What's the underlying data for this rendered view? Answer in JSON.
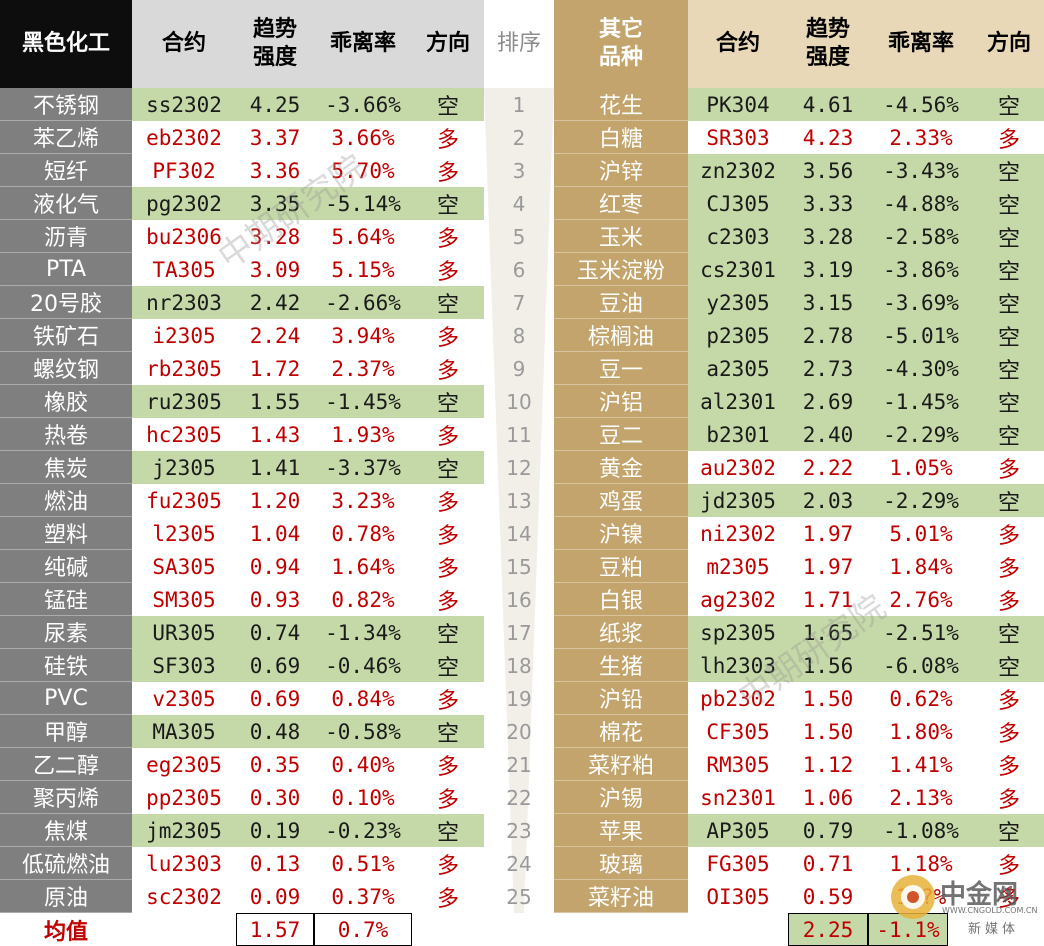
{
  "header": {
    "left_category": "黑色化工",
    "contract": "合约",
    "trend_1": "趋势",
    "trend_2": "强度",
    "deviation": "乖离率",
    "direction": "方向",
    "rank": "排序",
    "right_category_1": "其它",
    "right_category_2": "品种"
  },
  "colors": {
    "long_text": "#c00000",
    "short_text": "#1a1a1a",
    "short_bg": "#c5d9a8",
    "left_name_bg": "#7f7f7f",
    "right_name_bg": "#c3a46c"
  },
  "left_rows": [
    {
      "name": "不锈钢",
      "contract": "ss2302",
      "trend": "4.25",
      "deviation": "-3.66%",
      "direction": "空"
    },
    {
      "name": "苯乙烯",
      "contract": "eb2302",
      "trend": "3.37",
      "deviation": "3.66%",
      "direction": "多"
    },
    {
      "name": "短纤",
      "contract": "PF302",
      "trend": "3.36",
      "deviation": "5.70%",
      "direction": "多"
    },
    {
      "name": "液化气",
      "contract": "pg2302",
      "trend": "3.35",
      "deviation": "-5.14%",
      "direction": "空"
    },
    {
      "name": "沥青",
      "contract": "bu2306",
      "trend": "3.28",
      "deviation": "5.64%",
      "direction": "多"
    },
    {
      "name": "PTA",
      "contract": "TA305",
      "trend": "3.09",
      "deviation": "5.15%",
      "direction": "多"
    },
    {
      "name": "20号胶",
      "contract": "nr2303",
      "trend": "2.42",
      "deviation": "-2.66%",
      "direction": "空"
    },
    {
      "name": "铁矿石",
      "contract": "i2305",
      "trend": "2.24",
      "deviation": "3.94%",
      "direction": "多"
    },
    {
      "name": "螺纹钢",
      "contract": "rb2305",
      "trend": "1.72",
      "deviation": "2.37%",
      "direction": "多"
    },
    {
      "name": "橡胶",
      "contract": "ru2305",
      "trend": "1.55",
      "deviation": "-1.45%",
      "direction": "空"
    },
    {
      "name": "热卷",
      "contract": "hc2305",
      "trend": "1.43",
      "deviation": "1.93%",
      "direction": "多"
    },
    {
      "name": "焦炭",
      "contract": "j2305",
      "trend": "1.41",
      "deviation": "-3.37%",
      "direction": "空"
    },
    {
      "name": "燃油",
      "contract": "fu2305",
      "trend": "1.20",
      "deviation": "3.23%",
      "direction": "多"
    },
    {
      "name": "塑料",
      "contract": "l2305",
      "trend": "1.04",
      "deviation": "0.78%",
      "direction": "多"
    },
    {
      "name": "纯碱",
      "contract": "SA305",
      "trend": "0.94",
      "deviation": "1.64%",
      "direction": "多"
    },
    {
      "name": "锰硅",
      "contract": "SM305",
      "trend": "0.93",
      "deviation": "0.82%",
      "direction": "多"
    },
    {
      "name": "尿素",
      "contract": "UR305",
      "trend": "0.74",
      "deviation": "-1.34%",
      "direction": "空"
    },
    {
      "name": "硅铁",
      "contract": "SF303",
      "trend": "0.69",
      "deviation": "-0.46%",
      "direction": "空"
    },
    {
      "name": "PVC",
      "contract": "v2305",
      "trend": "0.69",
      "deviation": "0.84%",
      "direction": "多"
    },
    {
      "name": "甲醇",
      "contract": "MA305",
      "trend": "0.48",
      "deviation": "-0.58%",
      "direction": "空"
    },
    {
      "name": "乙二醇",
      "contract": "eg2305",
      "trend": "0.35",
      "deviation": "0.40%",
      "direction": "多"
    },
    {
      "name": "聚丙烯",
      "contract": "pp2305",
      "trend": "0.30",
      "deviation": "0.10%",
      "direction": "多"
    },
    {
      "name": "焦煤",
      "contract": "jm2305",
      "trend": "0.19",
      "deviation": "-0.23%",
      "direction": "空"
    },
    {
      "name": "低硫燃油",
      "contract": "lu2303",
      "trend": "0.13",
      "deviation": "0.51%",
      "direction": "多"
    },
    {
      "name": "原油",
      "contract": "sc2302",
      "trend": "0.09",
      "deviation": "0.37%",
      "direction": "多"
    }
  ],
  "ranks": [
    "1",
    "2",
    "3",
    "4",
    "5",
    "6",
    "7",
    "8",
    "9",
    "10",
    "11",
    "12",
    "13",
    "14",
    "15",
    "16",
    "17",
    "18",
    "19",
    "20",
    "21",
    "22",
    "23",
    "24",
    "25"
  ],
  "right_rows": [
    {
      "name": "花生",
      "contract": "PK304",
      "trend": "4.61",
      "deviation": "-4.56%",
      "direction": "空"
    },
    {
      "name": "白糖",
      "contract": "SR303",
      "trend": "4.23",
      "deviation": "2.33%",
      "direction": "多"
    },
    {
      "name": "沪锌",
      "contract": "zn2302",
      "trend": "3.56",
      "deviation": "-3.43%",
      "direction": "空"
    },
    {
      "name": "红枣",
      "contract": "CJ305",
      "trend": "3.33",
      "deviation": "-4.88%",
      "direction": "空"
    },
    {
      "name": "玉米",
      "contract": "c2303",
      "trend": "3.28",
      "deviation": "-2.58%",
      "direction": "空"
    },
    {
      "name": "玉米淀粉",
      "contract": "cs2301",
      "trend": "3.19",
      "deviation": "-3.86%",
      "direction": "空"
    },
    {
      "name": "豆油",
      "contract": "y2305",
      "trend": "3.15",
      "deviation": "-3.69%",
      "direction": "空"
    },
    {
      "name": "棕榈油",
      "contract": "p2305",
      "trend": "2.78",
      "deviation": "-5.01%",
      "direction": "空"
    },
    {
      "name": "豆一",
      "contract": "a2305",
      "trend": "2.73",
      "deviation": "-4.30%",
      "direction": "空"
    },
    {
      "name": "沪铝",
      "contract": "al2301",
      "trend": "2.69",
      "deviation": "-1.45%",
      "direction": "空"
    },
    {
      "name": "豆二",
      "contract": "b2301",
      "trend": "2.40",
      "deviation": "-2.29%",
      "direction": "空"
    },
    {
      "name": "黄金",
      "contract": "au2302",
      "trend": "2.22",
      "deviation": "1.05%",
      "direction": "多"
    },
    {
      "name": "鸡蛋",
      "contract": "jd2305",
      "trend": "2.03",
      "deviation": "-2.29%",
      "direction": "空"
    },
    {
      "name": "沪镍",
      "contract": "ni2302",
      "trend": "1.97",
      "deviation": "5.01%",
      "direction": "多"
    },
    {
      "name": "豆粕",
      "contract": "m2305",
      "trend": "1.97",
      "deviation": "1.84%",
      "direction": "多"
    },
    {
      "name": "白银",
      "contract": "ag2302",
      "trend": "1.71",
      "deviation": "2.76%",
      "direction": "多"
    },
    {
      "name": "纸浆",
      "contract": "sp2305",
      "trend": "1.65",
      "deviation": "-2.51%",
      "direction": "空"
    },
    {
      "name": "生猪",
      "contract": "lh2303",
      "trend": "1.56",
      "deviation": "-6.08%",
      "direction": "空"
    },
    {
      "name": "沪铅",
      "contract": "pb2302",
      "trend": "1.50",
      "deviation": "0.62%",
      "direction": "多"
    },
    {
      "name": "棉花",
      "contract": "CF305",
      "trend": "1.50",
      "deviation": "1.80%",
      "direction": "多"
    },
    {
      "name": "菜籽粕",
      "contract": "RM305",
      "trend": "1.12",
      "deviation": "1.41%",
      "direction": "多"
    },
    {
      "name": "沪锡",
      "contract": "sn2301",
      "trend": "1.06",
      "deviation": "2.13%",
      "direction": "多"
    },
    {
      "name": "苹果",
      "contract": "AP305",
      "trend": "0.79",
      "deviation": "-1.08%",
      "direction": "空"
    },
    {
      "name": "玻璃",
      "contract": "FG305",
      "trend": "0.71",
      "deviation": "1.18%",
      "direction": "多"
    },
    {
      "name": "菜籽油",
      "contract": "OI305",
      "trend": "0.59",
      "deviation": "1.?%",
      "direction": "多"
    }
  ],
  "average": {
    "label": "均值",
    "left_trend": "1.57",
    "left_deviation": "0.7%",
    "right_trend": "2.25",
    "right_deviation": "-1.1%"
  },
  "watermark": "中期研究院",
  "logo": {
    "brand": "中金网",
    "domain": "WWW.CNGOLD.COM.CN",
    "tagline": "新媒体"
  }
}
